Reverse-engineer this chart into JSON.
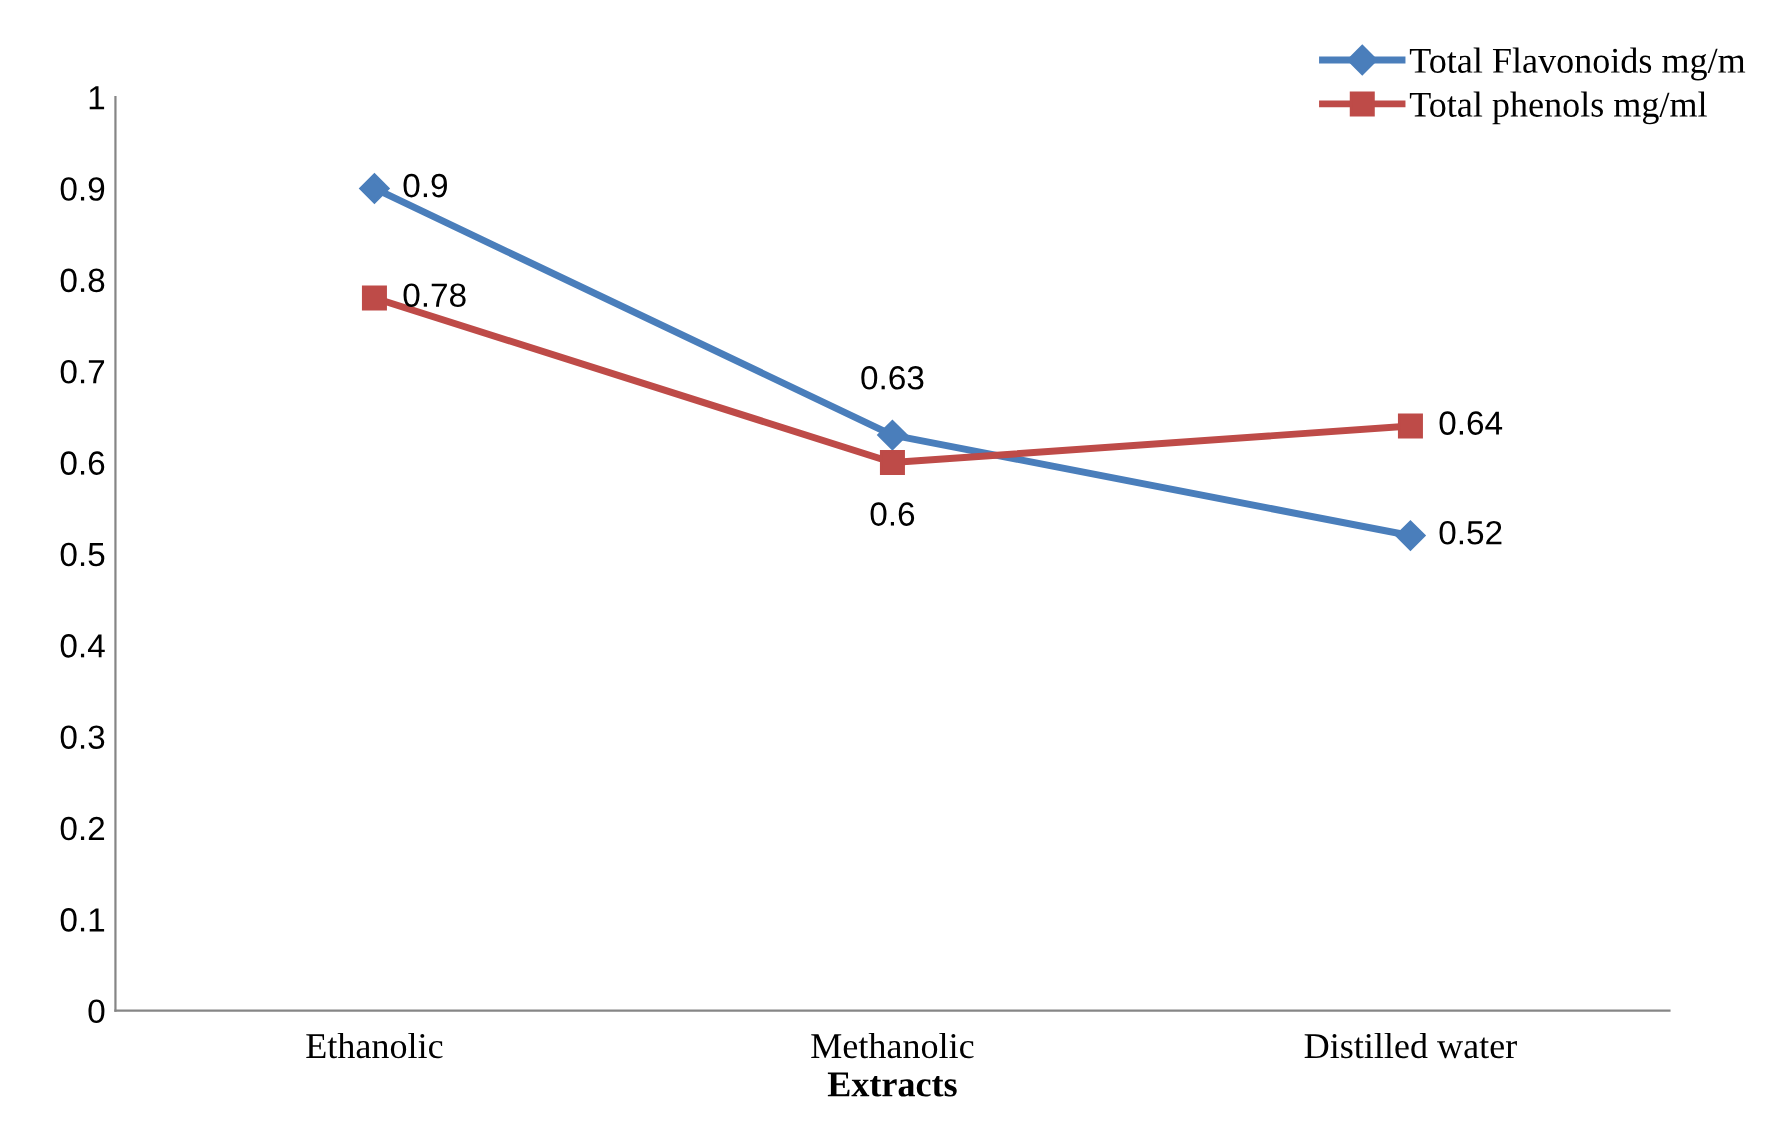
{
  "chart_data": {
    "type": "line",
    "xlabel": "Extracts",
    "categories": [
      "Ethanolic",
      "Methanolic",
      "Distilled water"
    ],
    "series": [
      {
        "name": "Total Flavonoids mg/m",
        "color": "#4a7ebb",
        "values": [
          0.9,
          0.63,
          0.52
        ],
        "marker": "diamond"
      },
      {
        "name": "Total phenols mg/ml",
        "color": "#be4b48",
        "values": [
          0.78,
          0.6,
          0.64
        ],
        "marker": "square"
      }
    ],
    "data_labels": true,
    "ylim": [
      0,
      1
    ],
    "yticks": [
      0,
      0.1,
      0.2,
      0.3,
      0.4,
      0.5,
      0.6,
      0.7,
      0.8,
      0.9,
      1
    ],
    "grid": false,
    "legend": "top right"
  }
}
